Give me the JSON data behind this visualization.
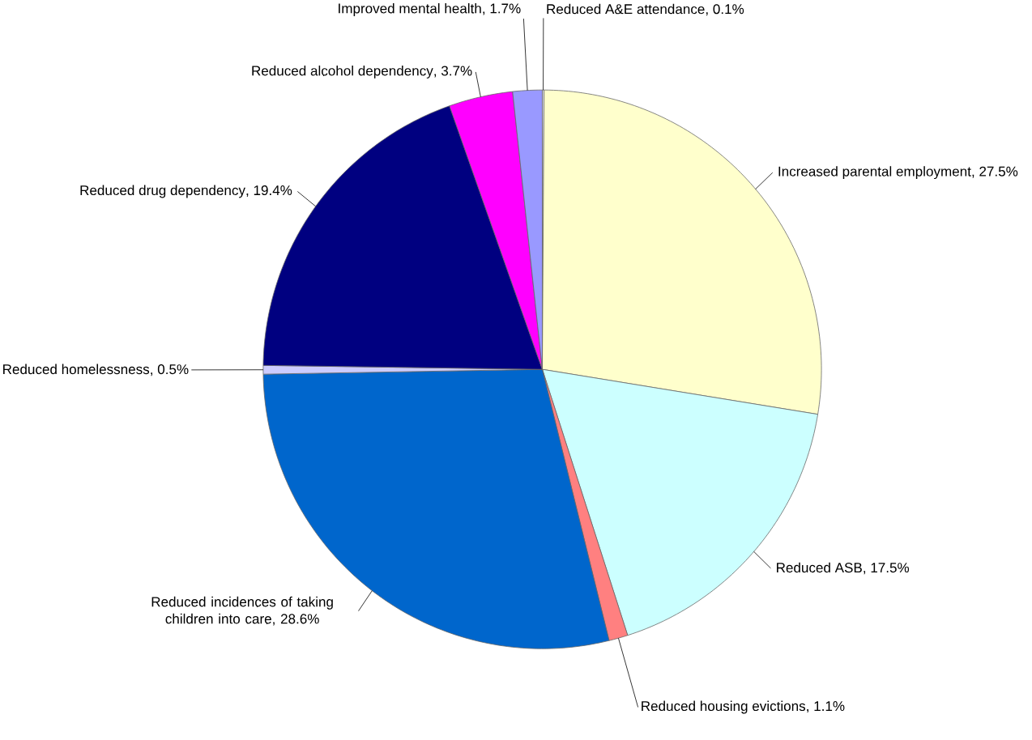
{
  "chart_data": {
    "type": "pie",
    "categories": [
      "Reduced A&E attendance",
      "Increased parental employment",
      "Reduced ASB",
      "Reduced housing evictions",
      "Reduced incidences of taking children into care",
      "Reduced homelessness",
      "Reduced drug dependency",
      "Reduced alcohol dependency",
      "Improved mental health"
    ],
    "values": [
      0.1,
      27.5,
      17.5,
      1.1,
      28.6,
      0.5,
      19.4,
      3.7,
      1.7
    ],
    "value_labels": [
      ", 0.1%",
      ", 27.5%",
      ", 17.5%",
      ", 1.1%",
      ", 28.6%",
      ", 0.5%",
      ", 19.4%",
      ", 3.7%",
      ", 1.7%"
    ],
    "colors": [
      "#e8e8f0",
      "#ffffcc",
      "#ccffff",
      "#ff8080",
      "#0066cc",
      "#ccccff",
      "#000080",
      "#ff00ff",
      "#9999ff"
    ]
  }
}
